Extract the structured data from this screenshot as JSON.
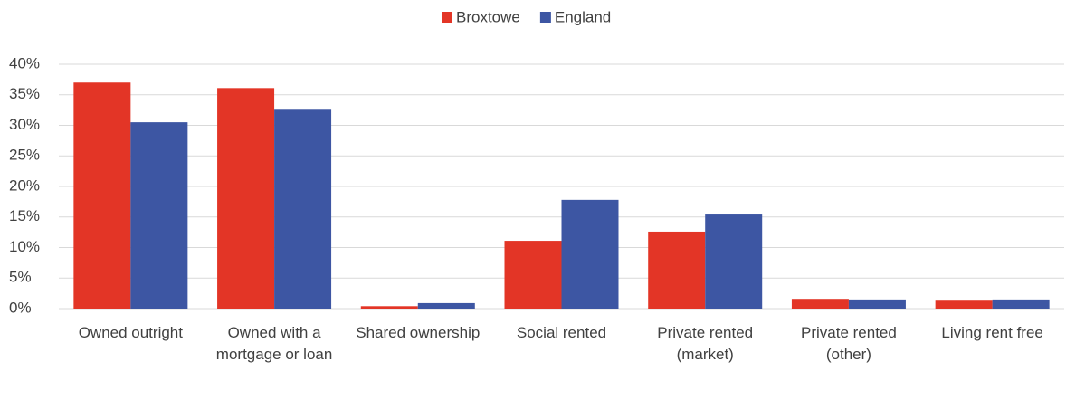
{
  "chart_data": {
    "type": "bar",
    "categories": [
      "Owned outright",
      "Owned with a mortgage or loan",
      "Shared ownership",
      "Social rented",
      "Private rented (market)",
      "Private rented (other)",
      "Living rent free"
    ],
    "series": [
      {
        "name": "Broxtowe",
        "color": "#e33526",
        "values": [
          37.0,
          36.1,
          0.4,
          11.1,
          12.6,
          1.6,
          1.3
        ]
      },
      {
        "name": "England",
        "color": "#3d56a3",
        "values": [
          30.5,
          32.7,
          0.9,
          17.8,
          15.4,
          1.5,
          1.5
        ]
      }
    ],
    "ylim": [
      0,
      40
    ],
    "yticks": [
      {
        "value": 0,
        "label": "0%"
      },
      {
        "value": 5,
        "label": "5%"
      },
      {
        "value": 10,
        "label": "10%"
      },
      {
        "value": 15,
        "label": "15%"
      },
      {
        "value": 20,
        "label": "20%"
      },
      {
        "value": 25,
        "label": "25%"
      },
      {
        "value": 30,
        "label": "30%"
      },
      {
        "value": 35,
        "label": "35%"
      },
      {
        "value": 40,
        "label": "40%"
      }
    ],
    "grid": true,
    "legend": "top"
  }
}
